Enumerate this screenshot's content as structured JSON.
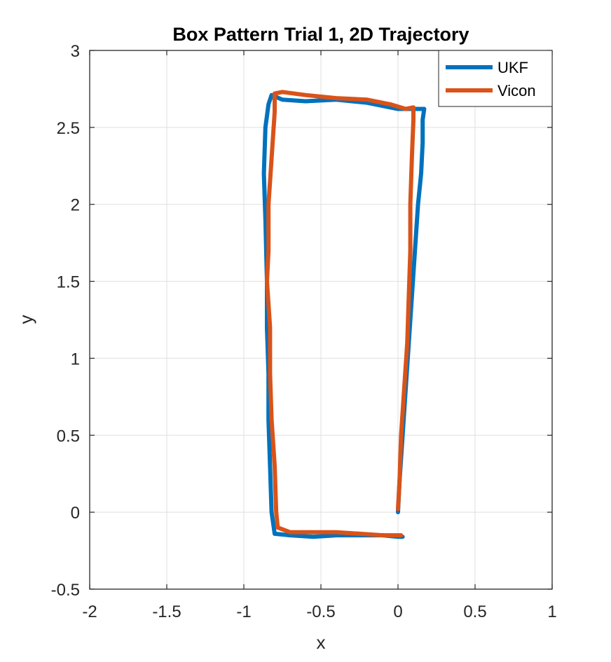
{
  "chart_data": {
    "type": "line",
    "title": "Box Pattern Trial 1, 2D Trajectory",
    "xlabel": "x",
    "ylabel": "y",
    "xlim": [
      -2,
      1
    ],
    "ylim": [
      -0.5,
      3
    ],
    "xticks": [
      -2,
      -1.5,
      -1,
      -0.5,
      0,
      0.5,
      1
    ],
    "yticks": [
      -0.5,
      0,
      0.5,
      1,
      1.5,
      2,
      2.5,
      3
    ],
    "xtick_labels": [
      "-2",
      "-1.5",
      "-1",
      "-0.5",
      "0",
      "0.5",
      "1"
    ],
    "ytick_labels": [
      "-0.5",
      "0",
      "0.5",
      "1",
      "1.5",
      "2",
      "2.5",
      "3"
    ],
    "grid": true,
    "legend_position": "top-right",
    "series": [
      {
        "name": "UKF",
        "color": "#0072BD",
        "x": [
          0.0,
          0.01,
          0.03,
          0.05,
          0.07,
          0.09,
          0.11,
          0.13,
          0.15,
          0.16,
          0.16,
          0.17,
          0.16,
          0.1,
          0.0,
          -0.2,
          -0.4,
          -0.6,
          -0.75,
          -0.82,
          -0.84,
          -0.86,
          -0.87,
          -0.86,
          -0.85,
          -0.85,
          -0.84,
          -0.84,
          -0.83,
          -0.82,
          -0.8,
          -0.7,
          -0.55,
          -0.4,
          -0.25,
          -0.1,
          0.0,
          0.03
        ],
        "y": [
          0.0,
          0.2,
          0.5,
          0.8,
          1.1,
          1.4,
          1.7,
          2.0,
          2.2,
          2.4,
          2.55,
          2.62,
          2.62,
          2.62,
          2.62,
          2.66,
          2.68,
          2.67,
          2.68,
          2.71,
          2.65,
          2.5,
          2.2,
          1.9,
          1.5,
          1.2,
          0.9,
          0.6,
          0.3,
          0.0,
          -0.14,
          -0.15,
          -0.16,
          -0.15,
          -0.15,
          -0.15,
          -0.16,
          -0.16
        ]
      },
      {
        "name": "Vicon",
        "color": "#D95319",
        "x": [
          0.0,
          0.01,
          0.02,
          0.04,
          0.06,
          0.07,
          0.08,
          0.08,
          0.09,
          0.1,
          0.1,
          0.05,
          -0.05,
          -0.2,
          -0.4,
          -0.6,
          -0.75,
          -0.8,
          -0.8,
          -0.82,
          -0.84,
          -0.84,
          -0.85,
          -0.83,
          -0.83,
          -0.82,
          -0.8,
          -0.79,
          -0.78,
          -0.7,
          -0.55,
          -0.4,
          -0.25,
          -0.1,
          0.02
        ],
        "y": [
          0.02,
          0.2,
          0.5,
          0.8,
          1.1,
          1.4,
          1.7,
          2.0,
          2.3,
          2.55,
          2.63,
          2.62,
          2.65,
          2.68,
          2.69,
          2.71,
          2.73,
          2.72,
          2.6,
          2.3,
          2.0,
          1.7,
          1.5,
          1.2,
          0.9,
          0.6,
          0.3,
          0.0,
          -0.1,
          -0.13,
          -0.13,
          -0.13,
          -0.14,
          -0.15,
          -0.15
        ]
      }
    ]
  }
}
